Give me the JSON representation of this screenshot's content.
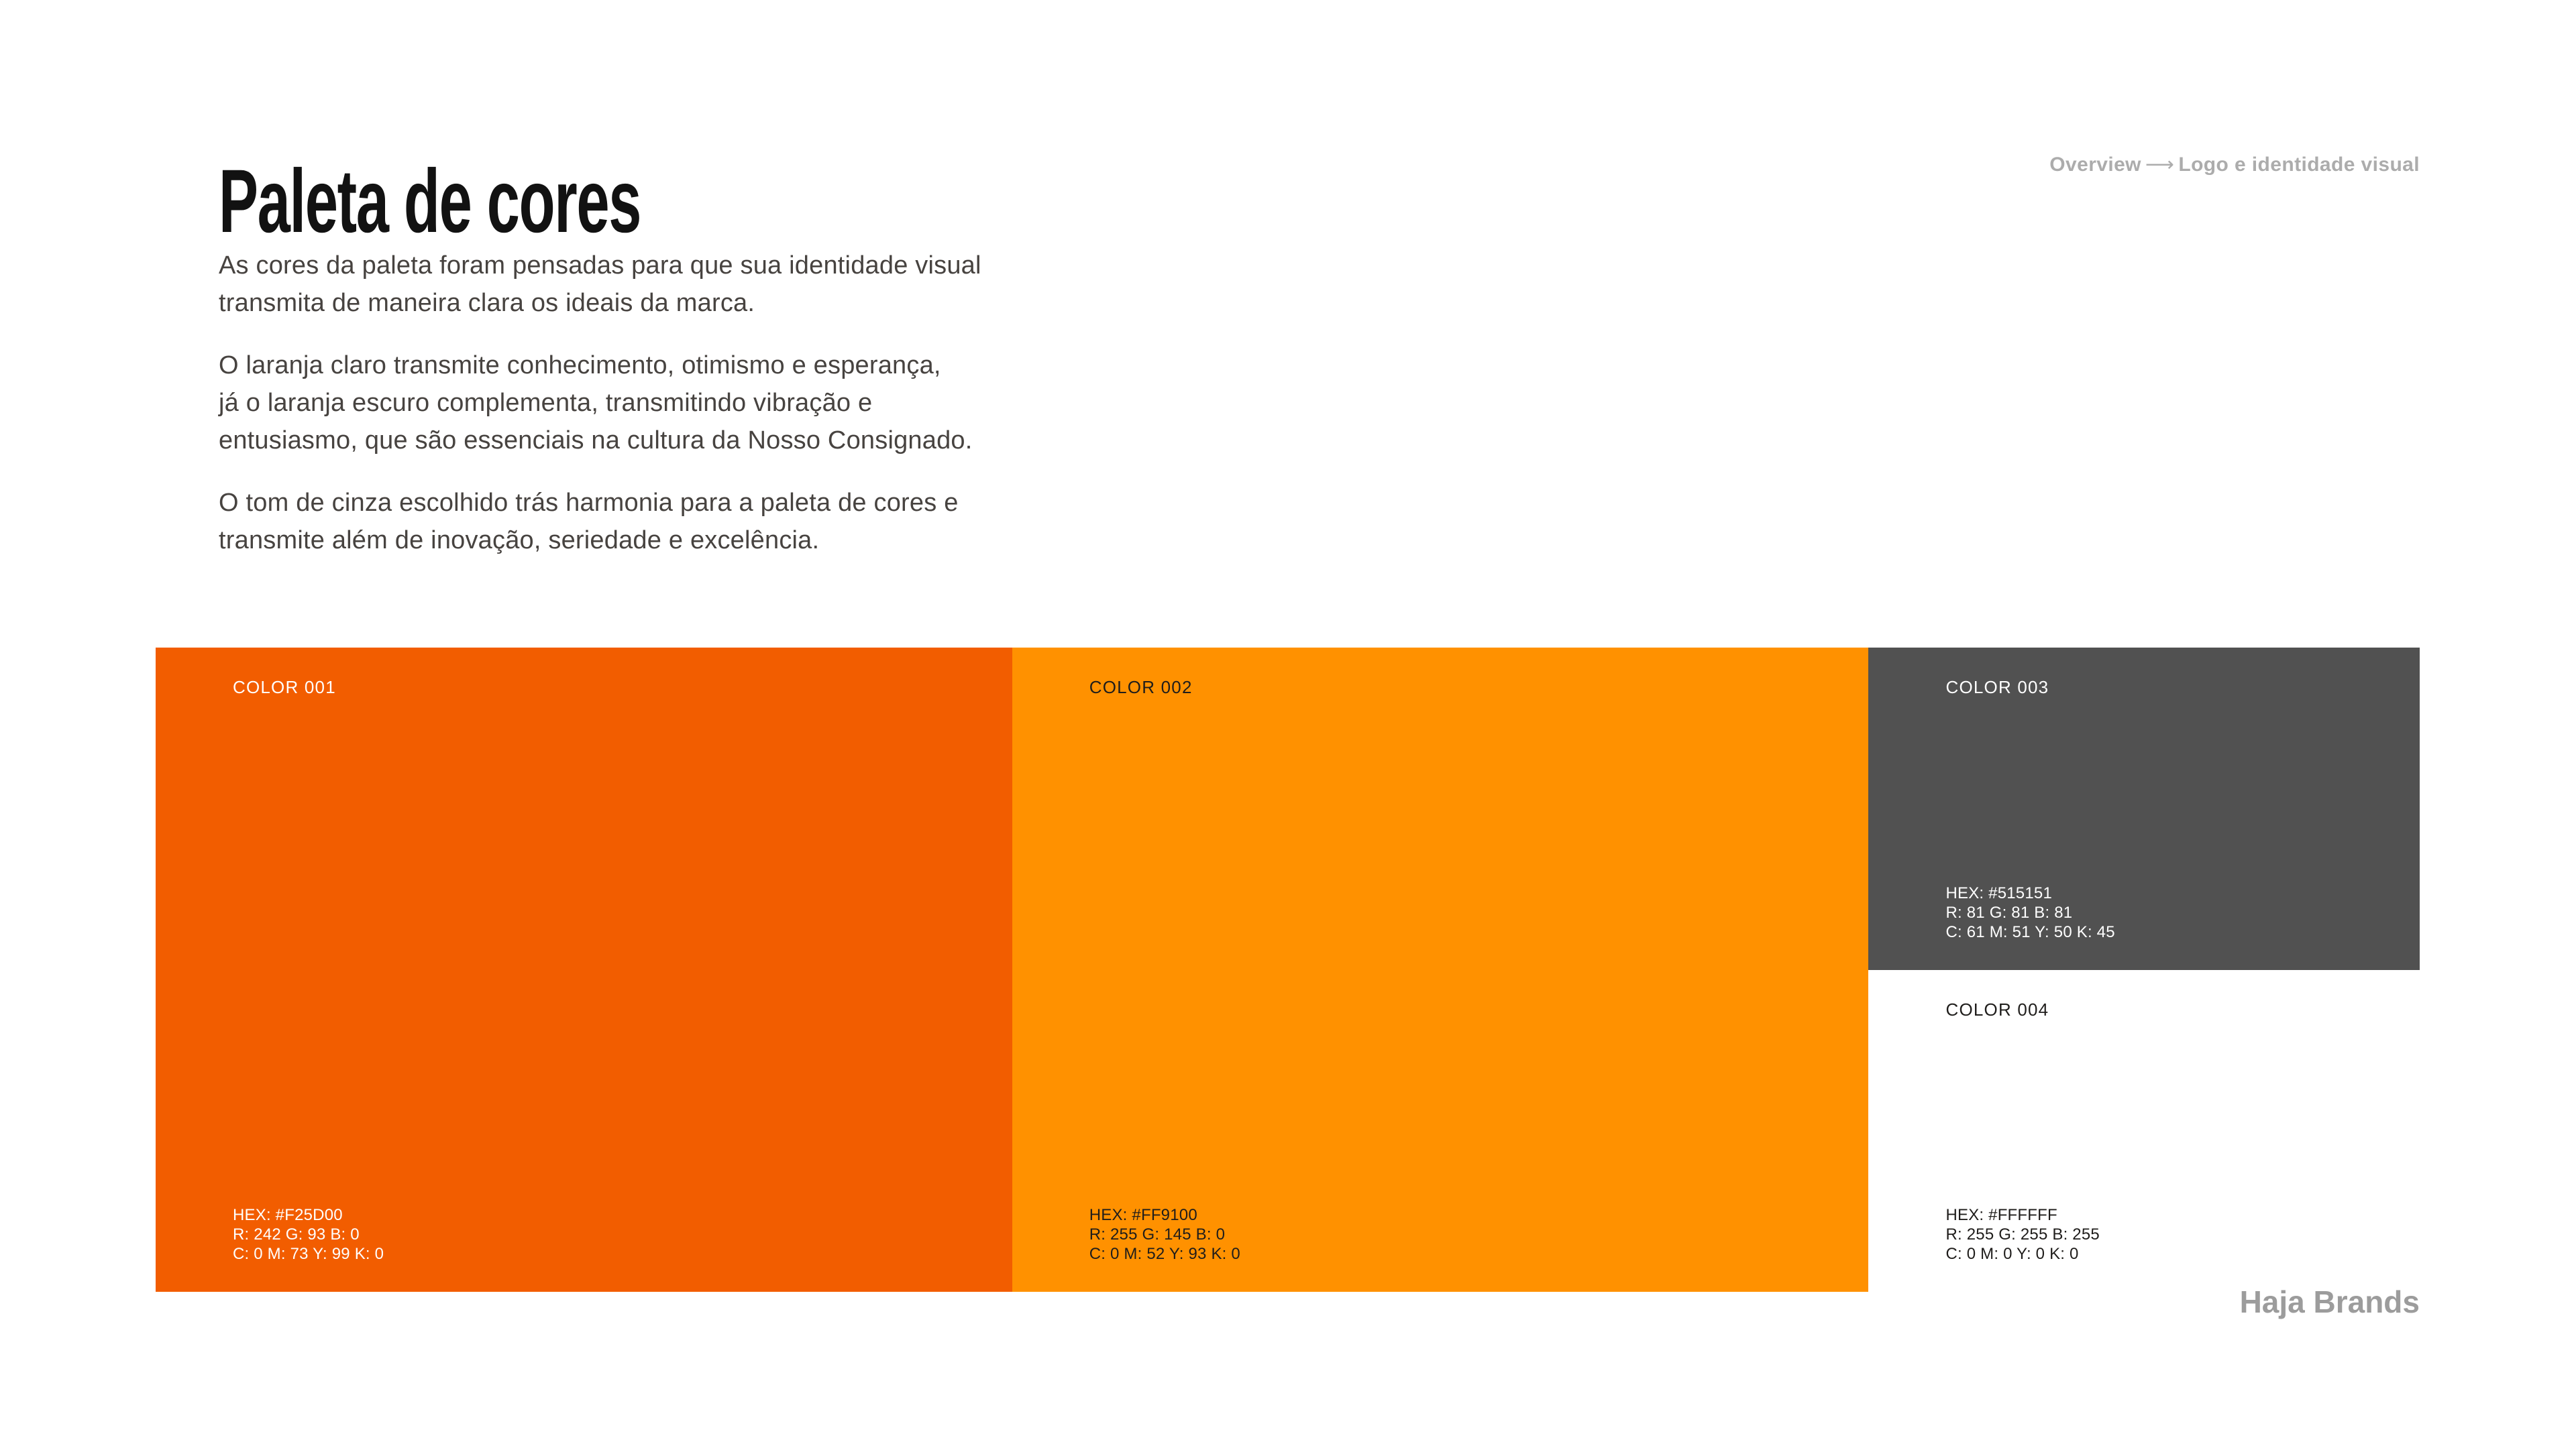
{
  "header": {
    "title": "Paleta de cores",
    "breadcrumb": {
      "from": "Overview",
      "arrow": "⟶",
      "to": "Logo e identidade visual"
    }
  },
  "intro": {
    "paragraphs": [
      {
        "lines": [
          "As cores da paleta foram pensadas para que sua identidade visual",
          "transmita de maneira clara os ideais da marca."
        ]
      },
      {
        "lines": [
          "O laranja claro transmite conhecimento, otimismo e esperança,",
          "já o laranja escuro complementa, transmitindo vibração e",
          "entusiasmo, que são essenciais na cultura da Nosso Consignado."
        ]
      },
      {
        "lines": [
          "O tom de cinza escolhido trás harmonia para a paleta de cores e",
          "transmite além de inovação, seriedade e excelência."
        ]
      }
    ]
  },
  "swatches": [
    {
      "label": "COLOR 001",
      "hex_line": "HEX: #F25D00",
      "rgb_line": "R: 242 G: 93 B: 0",
      "cmyk_line": "C: 0 M: 73 Y: 99 K: 0",
      "bg": "#F25D00",
      "text": "#FFFFFF"
    },
    {
      "label": "COLOR 002",
      "hex_line": "HEX: #FF9100",
      "rgb_line": "R: 255 G: 145 B: 0",
      "cmyk_line": "C: 0 M: 52 Y: 93 K: 0",
      "bg": "#FF9100",
      "text": "#1F1D1B"
    },
    {
      "label": "COLOR 003",
      "hex_line": "HEX: #515151",
      "rgb_line": "R: 81 G: 81 B: 81",
      "cmyk_line": "C: 61 M: 51 Y: 50 K: 45",
      "bg": "#515151",
      "text": "#FFFFFF"
    },
    {
      "label": "COLOR 004",
      "hex_line": "HEX: #FFFFFF",
      "rgb_line": "R: 255 G: 255 B: 255",
      "cmyk_line": "C: 0 M: 0 Y: 0 K: 0",
      "bg": "#FFFFFF",
      "text": "#1F1D1B"
    }
  ],
  "footer": {
    "brand": "Haja Brands"
  }
}
